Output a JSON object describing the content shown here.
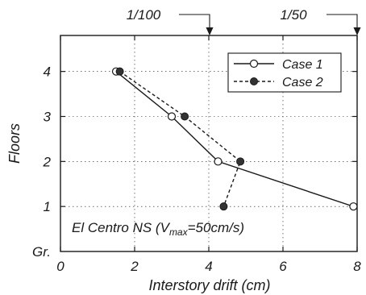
{
  "chart_data": {
    "type": "line",
    "xlabel": "Interstory drift (cm)",
    "ylabel": "Floors",
    "xlim": [
      0,
      8
    ],
    "ylim": [
      0,
      4.8
    ],
    "x_ticks": [
      0,
      2,
      4,
      6,
      8
    ],
    "y_ticks": [
      {
        "value": 0,
        "label": "Gr."
      },
      {
        "value": 1,
        "label": "1"
      },
      {
        "value": 2,
        "label": "2"
      },
      {
        "value": 3,
        "label": "3"
      },
      {
        "value": 4,
        "label": "4"
      }
    ],
    "grid": true,
    "legend_position": "top-right",
    "series": [
      {
        "name": "Case 1",
        "style": "solid-open-circle",
        "points": [
          [
            1.5,
            4
          ],
          [
            3.0,
            3
          ],
          [
            4.25,
            2
          ],
          [
            7.9,
            1
          ]
        ]
      },
      {
        "name": "Case 2",
        "style": "dashed-filled-circle",
        "points": [
          [
            1.6,
            4
          ],
          [
            3.35,
            3
          ],
          [
            4.85,
            2
          ],
          [
            4.4,
            1
          ]
        ]
      }
    ],
    "annotations": {
      "inside": {
        "prefix": "El Centro NS (V",
        "subscript": "max",
        "suffix": "=50cm/s)"
      },
      "markers": [
        {
          "label": "1/100",
          "x": 4
        },
        {
          "label": "1/50",
          "x": 8
        }
      ]
    }
  }
}
